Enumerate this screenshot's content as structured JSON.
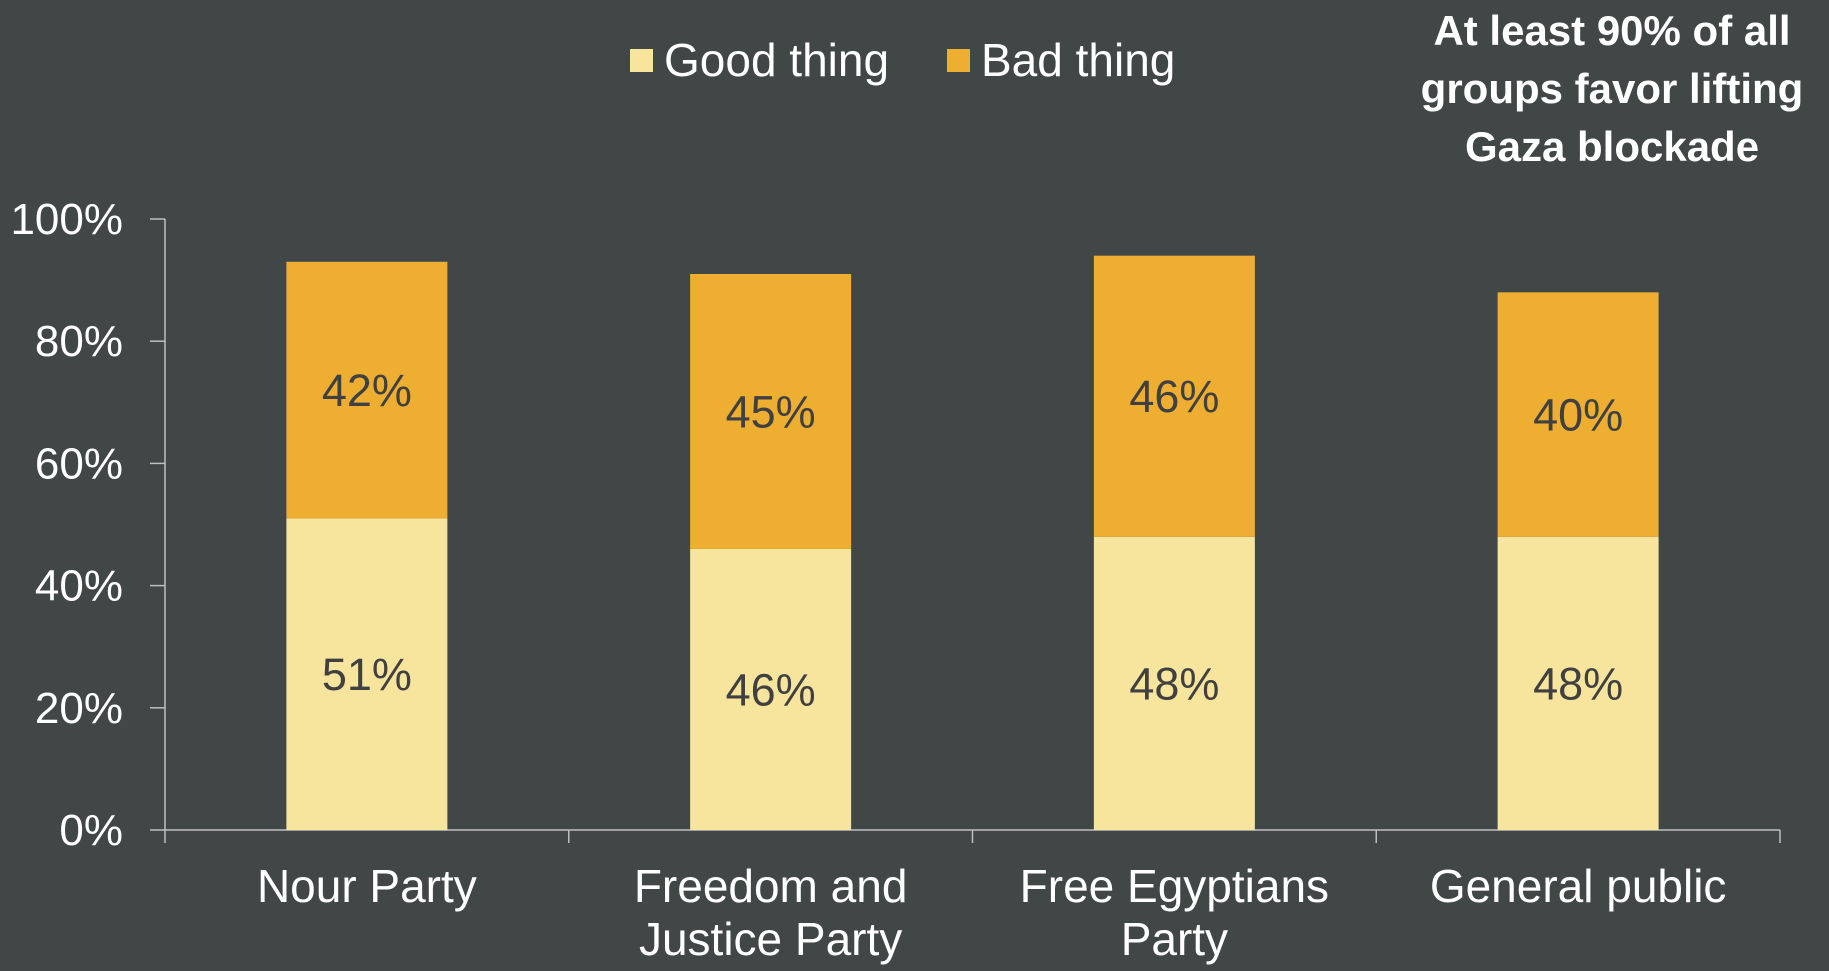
{
  "chart_data": {
    "type": "bar",
    "stacked": true,
    "categories": [
      "Nour Party",
      "Freedom and Justice Party",
      "Free Egyptians Party",
      "General public"
    ],
    "category_lines": [
      [
        "Nour Party"
      ],
      [
        "Freedom and",
        "Justice Party"
      ],
      [
        "Free Egyptians",
        "Party"
      ],
      [
        "General public"
      ]
    ],
    "series": [
      {
        "name": "Good thing",
        "values": [
          51,
          46,
          48,
          48
        ],
        "labels": [
          "51%",
          "46%",
          "48%",
          "48%"
        ],
        "color": "#F7E49D"
      },
      {
        "name": "Bad thing",
        "values": [
          42,
          45,
          46,
          40
        ],
        "labels": [
          "42%",
          "45%",
          "46%",
          "40%"
        ],
        "color": "#EDAE32"
      }
    ],
    "ylim": [
      0,
      100
    ],
    "yticks": [
      0,
      20,
      40,
      60,
      80,
      100
    ],
    "ytick_labels": [
      "0%",
      "20%",
      "40%",
      "60%",
      "80%",
      "100%"
    ],
    "xlabel": "",
    "ylabel": "",
    "legend_position": "top-center",
    "annotation": [
      "At least 90% of all",
      "groups favor lifting",
      "Gaza blockade"
    ],
    "grid": false,
    "colors": {
      "background": "#414647",
      "axis": "#BFBFBF",
      "text": "#FFFFFF",
      "label_text": "#404040"
    }
  }
}
